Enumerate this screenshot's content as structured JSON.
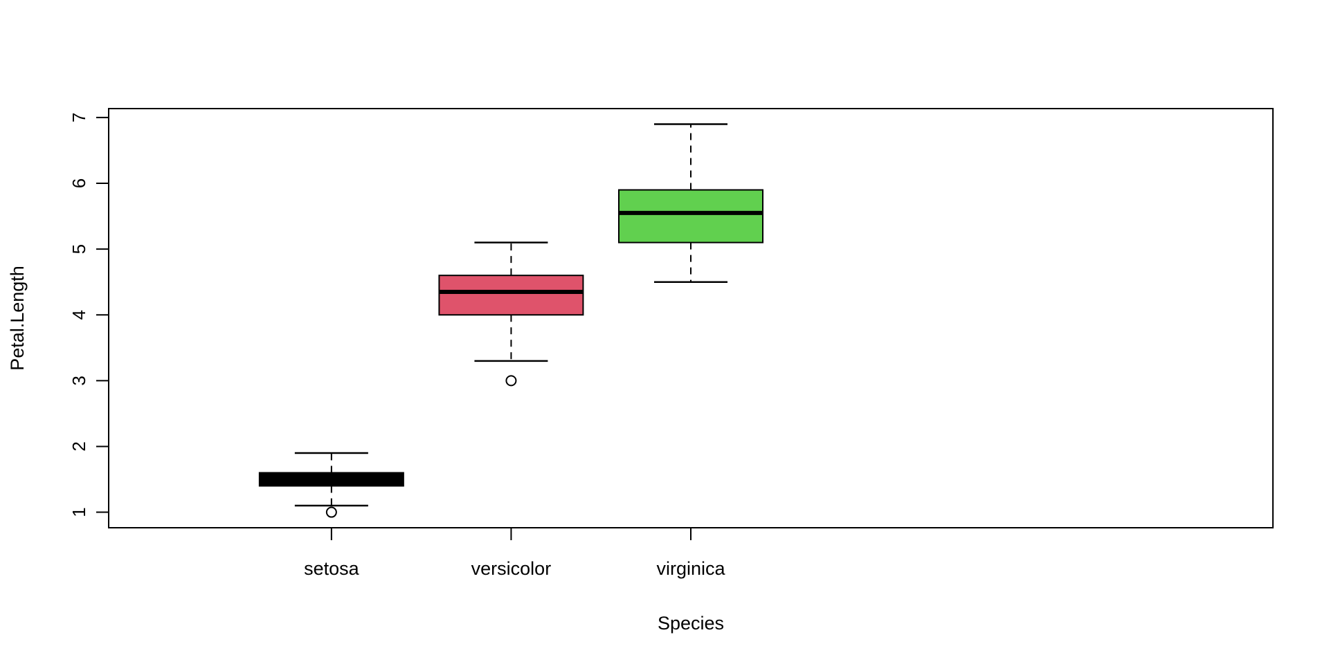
{
  "chart_data": {
    "type": "box",
    "title": "",
    "xlabel": "Species",
    "ylabel": "Petal.Length",
    "xlim": [
      0,
      6
    ],
    "ylim": [
      1,
      6.9
    ],
    "yticks": [
      1,
      2,
      3,
      4,
      5,
      6,
      7
    ],
    "grid": false,
    "categories": [
      "setosa",
      "versicolor",
      "virginica"
    ],
    "boxes": [
      {
        "category": "setosa",
        "whisker_low": 1.1,
        "q1": 1.4,
        "median": 1.5,
        "q3": 1.6,
        "whisker_high": 1.9,
        "outliers": [
          1.0
        ],
        "color": "#000000"
      },
      {
        "category": "versicolor",
        "whisker_low": 3.3,
        "q1": 4.0,
        "median": 4.35,
        "q3": 4.6,
        "whisker_high": 5.1,
        "outliers": [
          3.0
        ],
        "color": "#DF536B"
      },
      {
        "category": "virginica",
        "whisker_low": 4.5,
        "q1": 5.1,
        "median": 5.55,
        "q3": 5.9,
        "whisker_high": 6.9,
        "outliers": [],
        "color": "#61D04F"
      }
    ]
  }
}
